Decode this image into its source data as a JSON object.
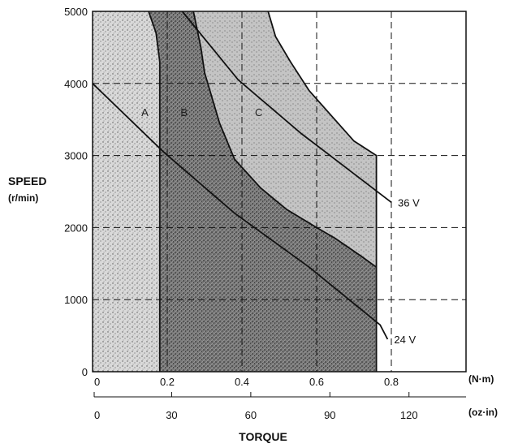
{
  "chart_data": {
    "type": "area",
    "ylabel": "SPEED",
    "ylabel_unit": "(r/min)",
    "xlabel": "TORQUE",
    "x_unit_nm": "(N·m)",
    "x_unit_ozin": "(oz·in)",
    "xlim": [
      0,
      1.0
    ],
    "ylim": [
      0,
      5000
    ],
    "grid": true,
    "y_ticks": [
      "0",
      "1000",
      "2000",
      "3000",
      "4000",
      "5000"
    ],
    "x_ticks_nm": [
      {
        "value": 0,
        "label": "0"
      },
      {
        "value": 0.2,
        "label": "0.2"
      },
      {
        "value": 0.4,
        "label": "0.4"
      },
      {
        "value": 0.6,
        "label": "0.6"
      },
      {
        "value": 0.8,
        "label": "0.8"
      }
    ],
    "x_ticks_ozin": [
      {
        "value": 0,
        "label": "0"
      },
      {
        "value": 30,
        "label": "30"
      },
      {
        "value": 60,
        "label": "60"
      },
      {
        "value": 90,
        "label": "90"
      },
      {
        "value": 120,
        "label": "120"
      }
    ],
    "regions": [
      {
        "label": "A",
        "label_x": 0.14,
        "label_y": 3550,
        "shade": "#b2b2b2",
        "points": [
          [
            0.0,
            0
          ],
          [
            0.18,
            0
          ],
          [
            0.18,
            5000
          ],
          [
            0.0,
            5000
          ]
        ]
      },
      {
        "label": "B",
        "label_x": 0.245,
        "label_y": 3550,
        "shade": "#5c5c5c",
        "points": [
          [
            0.18,
            0
          ],
          [
            0.76,
            0
          ],
          [
            0.76,
            1450
          ],
          [
            0.72,
            1600
          ],
          [
            0.65,
            1850
          ],
          [
            0.6,
            2000
          ],
          [
            0.52,
            2250
          ],
          [
            0.45,
            2550
          ],
          [
            0.38,
            2950
          ],
          [
            0.34,
            3450
          ],
          [
            0.3,
            4150
          ],
          [
            0.29,
            4500
          ],
          [
            0.27,
            5000
          ],
          [
            0.15,
            5000
          ],
          [
            0.17,
            4700
          ],
          [
            0.18,
            4300
          ]
        ]
      },
      {
        "label": "C",
        "label_x": 0.445,
        "label_y": 3550,
        "shade": "#a6a6a6",
        "points": [
          [
            0.27,
            5000
          ],
          [
            0.47,
            5000
          ],
          [
            0.49,
            4650
          ],
          [
            0.53,
            4300
          ],
          [
            0.58,
            3900
          ],
          [
            0.64,
            3550
          ],
          [
            0.7,
            3200
          ],
          [
            0.76,
            3000
          ],
          [
            0.76,
            1450
          ],
          [
            0.72,
            1600
          ],
          [
            0.65,
            1850
          ],
          [
            0.6,
            2000
          ],
          [
            0.52,
            2250
          ],
          [
            0.45,
            2550
          ],
          [
            0.38,
            2950
          ],
          [
            0.34,
            3450
          ],
          [
            0.3,
            4150
          ],
          [
            0.29,
            4500
          ]
        ]
      }
    ],
    "series": [
      {
        "name": "24 V",
        "points": [
          [
            0.0,
            4000
          ],
          [
            0.19,
            3050
          ],
          [
            0.38,
            2200
          ],
          [
            0.58,
            1450
          ],
          [
            0.77,
            650
          ],
          [
            0.79,
            450
          ]
        ]
      },
      {
        "name": "36 V",
        "points": [
          [
            0.24,
            5000
          ],
          [
            0.39,
            4050
          ],
          [
            0.56,
            3300
          ],
          [
            0.8,
            2350
          ]
        ]
      }
    ],
    "boundaries": [
      {
        "points": [
          [
            0.15,
            5000
          ],
          [
            0.17,
            4700
          ],
          [
            0.18,
            4300
          ],
          [
            0.18,
            0
          ]
        ]
      },
      {
        "points": [
          [
            0.27,
            5000
          ],
          [
            0.29,
            4500
          ],
          [
            0.3,
            4150
          ],
          [
            0.34,
            3450
          ],
          [
            0.38,
            2950
          ],
          [
            0.45,
            2550
          ],
          [
            0.52,
            2250
          ],
          [
            0.6,
            2000
          ],
          [
            0.65,
            1850
          ],
          [
            0.72,
            1600
          ],
          [
            0.76,
            1450
          ]
        ]
      },
      {
        "points": [
          [
            0.47,
            5000
          ],
          [
            0.49,
            4650
          ],
          [
            0.53,
            4300
          ],
          [
            0.58,
            3900
          ],
          [
            0.64,
            3550
          ],
          [
            0.7,
            3200
          ],
          [
            0.76,
            3000
          ],
          [
            0.76,
            0
          ]
        ]
      }
    ]
  }
}
